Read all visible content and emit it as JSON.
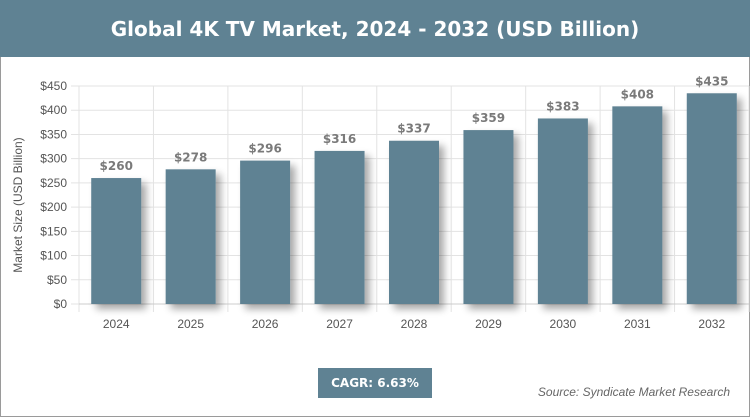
{
  "chart_data": {
    "type": "bar",
    "title": "Global 4K TV Market, 2024 - 2032 (USD Billion)",
    "ylabel": "Market Size (USD Billion)",
    "xlabel": "",
    "categories": [
      "2024",
      "2025",
      "2026",
      "2027",
      "2028",
      "2029",
      "2030",
      "2031",
      "2032"
    ],
    "values": [
      260,
      278,
      296,
      316,
      337,
      359,
      383,
      408,
      435
    ],
    "data_labels": [
      "$260",
      "$278",
      "$296",
      "$316",
      "$337",
      "$359",
      "$383",
      "$408",
      "$435"
    ],
    "ylim": [
      0,
      450
    ],
    "yticks": [
      0,
      50,
      100,
      150,
      200,
      250,
      300,
      350,
      400,
      450
    ],
    "ytick_labels": [
      "$0",
      "$50",
      "$100",
      "$150",
      "$200",
      "$250",
      "$300",
      "$350",
      "$400",
      "$450"
    ],
    "grid": true,
    "bar_color": "#5f8293"
  },
  "cagr": "CAGR: 6.63%",
  "source": "Source: Syndicate Market Research"
}
